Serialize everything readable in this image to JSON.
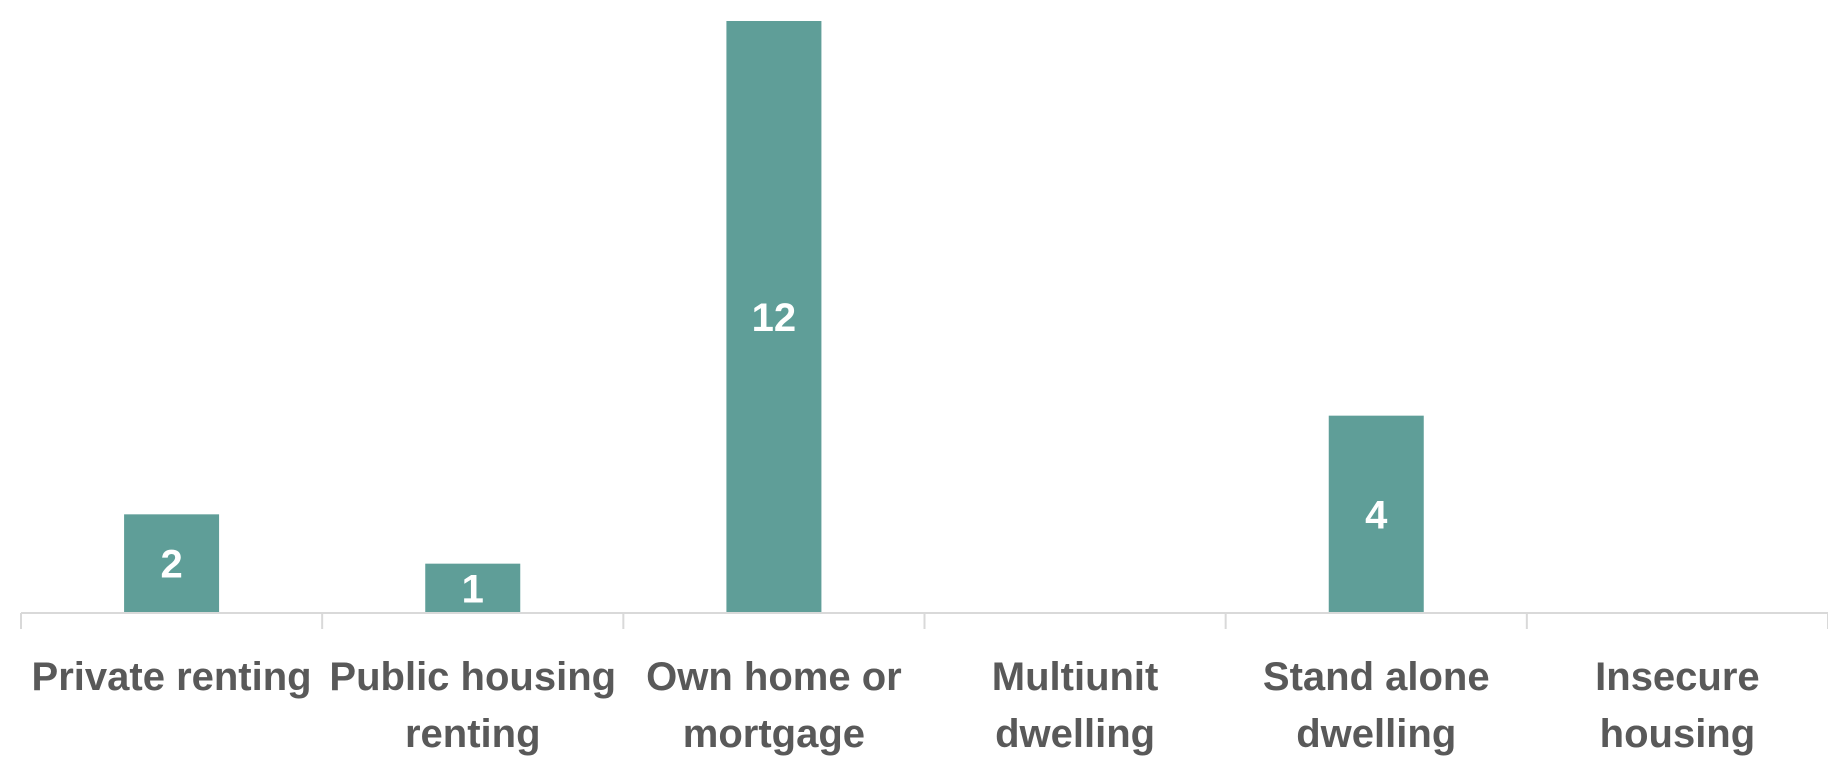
{
  "chart_data": {
    "type": "bar",
    "categories": [
      [
        "Private renting"
      ],
      [
        "Public housing",
        "renting"
      ],
      [
        "Own home or",
        "mortgage"
      ],
      [
        "Multiunit",
        "dwelling"
      ],
      [
        "Stand alone",
        "dwelling"
      ],
      [
        "Insecure",
        "housing"
      ]
    ],
    "values": [
      2,
      1,
      12,
      0,
      4,
      0
    ],
    "data_labels": [
      "2",
      "1",
      "12",
      "",
      "4",
      ""
    ],
    "ylim": [
      0,
      12
    ],
    "grid": false,
    "legend": "none",
    "bar_color": "#5f9e98",
    "axis_color": "#d9d9d9",
    "label_color": "#595959"
  }
}
